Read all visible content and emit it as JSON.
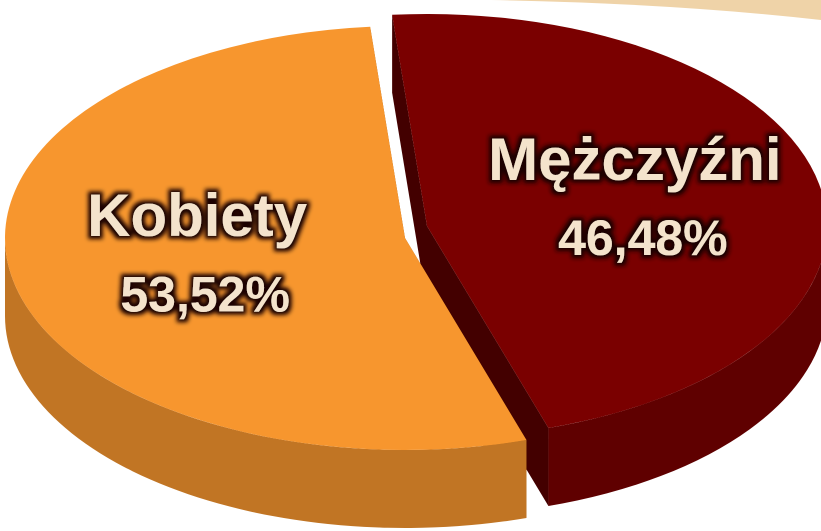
{
  "chart_data": {
    "type": "pie",
    "categories": [
      "Mężczyźni",
      "Kobiety"
    ],
    "values": [
      46.48,
      53.52
    ],
    "value_labels": [
      "46,48%",
      "53,52%"
    ],
    "colors": [
      "#7a0000",
      "#f7962e"
    ]
  }
}
